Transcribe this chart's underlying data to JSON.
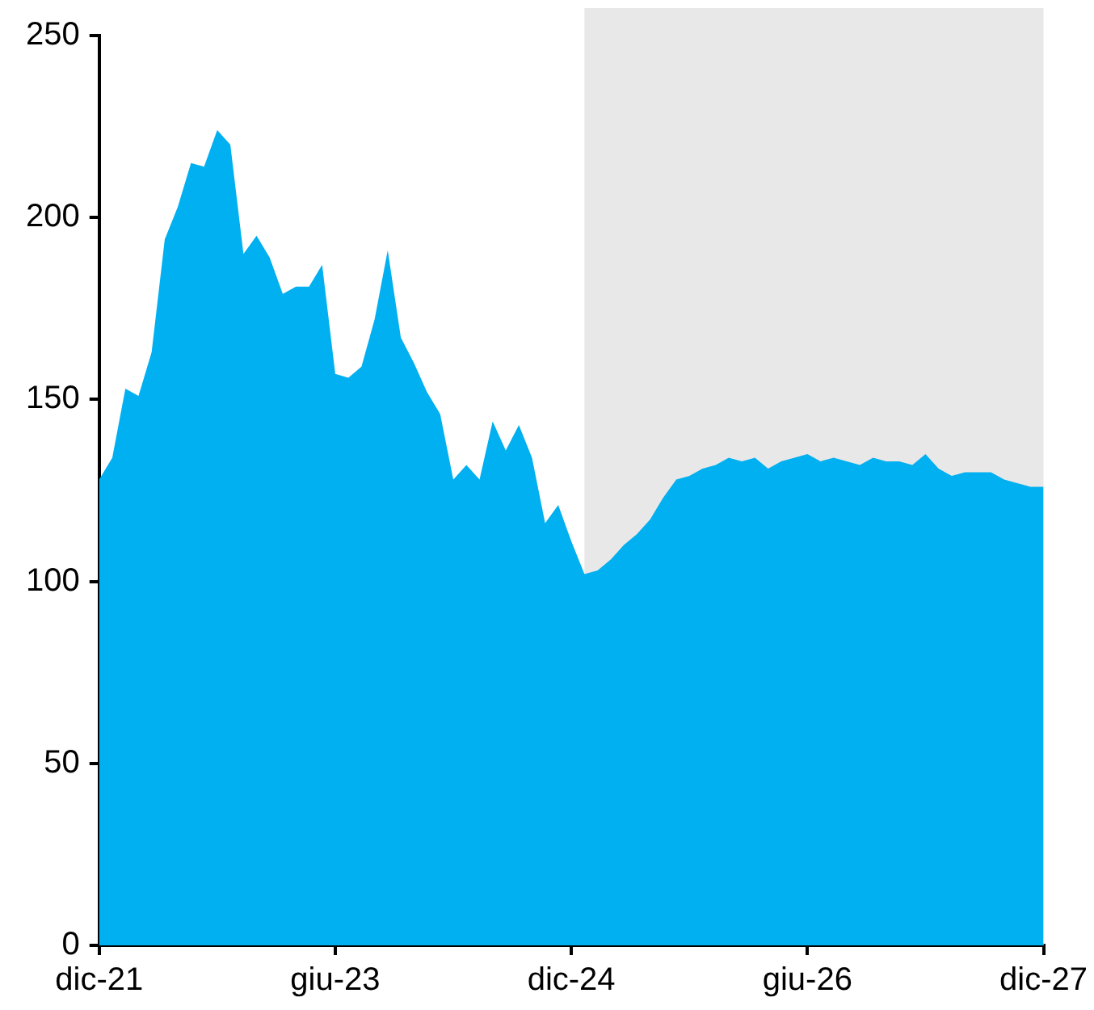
{
  "chart_data": {
    "type": "area",
    "x": [
      "2021-12",
      "2022-01",
      "2022-02",
      "2022-03",
      "2022-04",
      "2022-05",
      "2022-06",
      "2022-07",
      "2022-08",
      "2022-09",
      "2022-10",
      "2022-11",
      "2022-12",
      "2023-01",
      "2023-02",
      "2023-03",
      "2023-04",
      "2023-05",
      "2023-06",
      "2023-07",
      "2023-08",
      "2023-09",
      "2023-10",
      "2023-11",
      "2023-12",
      "2024-01",
      "2024-02",
      "2024-03",
      "2024-04",
      "2024-05",
      "2024-06",
      "2024-07",
      "2024-08",
      "2024-09",
      "2024-10",
      "2024-11",
      "2024-12",
      "2025-01",
      "2025-02",
      "2025-03",
      "2025-04",
      "2025-05",
      "2025-06",
      "2025-07",
      "2025-08",
      "2025-09",
      "2025-10",
      "2025-11",
      "2025-12",
      "2026-01",
      "2026-02",
      "2026-03",
      "2026-04",
      "2026-05",
      "2026-06",
      "2026-07",
      "2026-08",
      "2026-09",
      "2026-10",
      "2026-11",
      "2026-12",
      "2027-01",
      "2027-02",
      "2027-03",
      "2027-04",
      "2027-05",
      "2027-06",
      "2027-07",
      "2027-08",
      "2027-09",
      "2027-10",
      "2027-11",
      "2027-12"
    ],
    "series": [
      {
        "color": "#00b0f0",
        "values": [
          128,
          134,
          153,
          151,
          163,
          194,
          203,
          215,
          214,
          224,
          220,
          190,
          195,
          189,
          179,
          181,
          181,
          187,
          157,
          156,
          159,
          172,
          191,
          167,
          160,
          152,
          146,
          128,
          132,
          128,
          144,
          136,
          143,
          134,
          116,
          121,
          111,
          102,
          103,
          106,
          110,
          113,
          117,
          123,
          128,
          129,
          131,
          132,
          134,
          133,
          134,
          131,
          133,
          134,
          135,
          133,
          134,
          133,
          132,
          134,
          133,
          133,
          132,
          135,
          131,
          129,
          130,
          130,
          130,
          128,
          127,
          126,
          126
        ]
      }
    ],
    "xlim": [
      "2021-12",
      "2027-12"
    ],
    "xticks": [
      {
        "value": "2021-12",
        "label": "dic-21"
      },
      {
        "value": "2023-06",
        "label": "giu-23"
      },
      {
        "value": "2024-12",
        "label": "dic-24"
      },
      {
        "value": "2026-06",
        "label": "giu-26"
      },
      {
        "value": "2027-12",
        "label": "dic-27"
      }
    ],
    "ylim": [
      0,
      250
    ],
    "yticks": [
      0,
      50,
      100,
      150,
      200,
      250
    ],
    "bands": [
      {
        "axis": "x",
        "from": "2025-01",
        "to": "2027-12",
        "color": "#e8e8e8"
      }
    ]
  }
}
